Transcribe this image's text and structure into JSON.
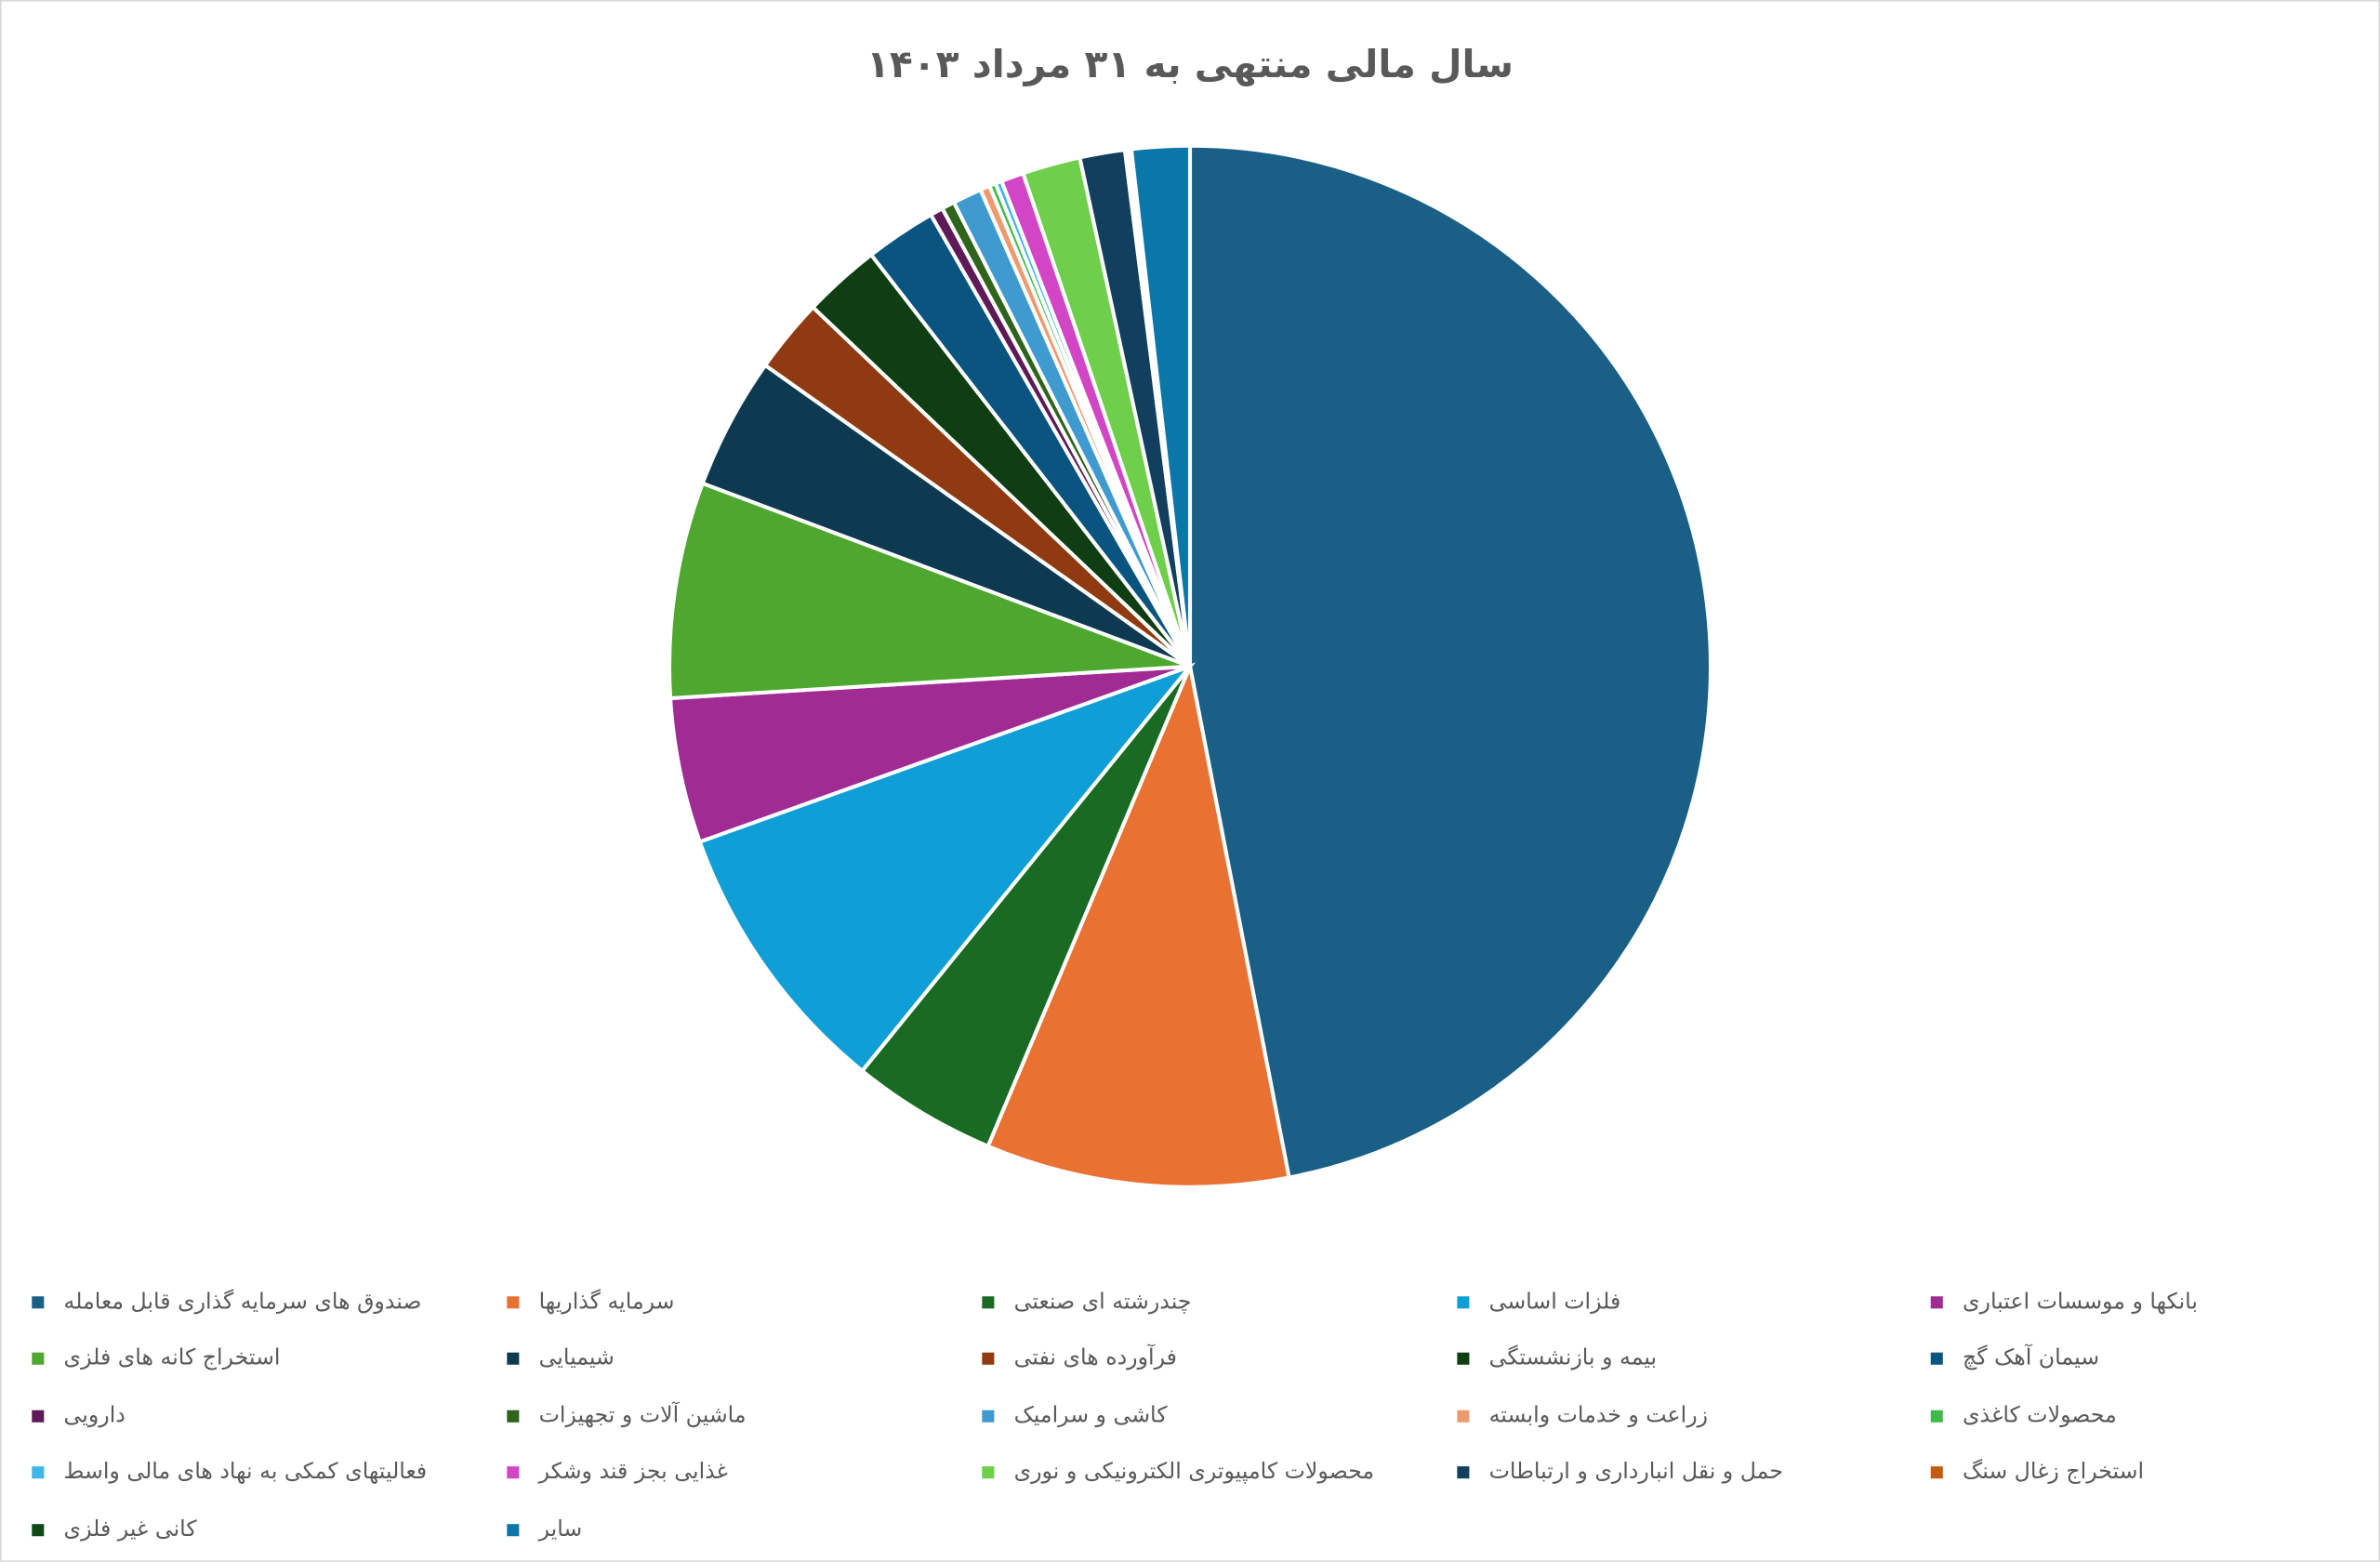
{
  "chart_data": {
    "type": "pie",
    "title": "سال مالی منتهی به ۳۱ مرداد ۱۴۰۳",
    "categories": [
      "صندوق های سرمایه گذاری قابل معامله",
      "سرمایه گذاریها",
      "چندرشته ای صنعتی",
      "فلزات اساسی",
      "بانکها و موسسات اعتباری",
      "استخراج کانه های فلزی",
      "شیمیایی",
      "فرآورده های نفتی",
      "بیمه و بازنشستگی",
      "سیمان آهک گچ",
      "دارویی",
      "ماشین آلات و تجهیزات",
      "کاشی و سرامیک",
      "زراعت و خدمات وابسته",
      "محصولات کاغذی",
      "فعالیتهای کمکی به نهاد های مالی واسط",
      "غذایی بجز قند وشکر",
      "محصولات کامپیوتری الکترونیکی و نوری",
      "حمل و نقل انبارداری و ارتباطات",
      "استخراج زغال سنگ",
      "کانی غیر فلزی",
      "سایر"
    ],
    "values": [
      47,
      9.4,
      4.5,
      8.7,
      4.5,
      6.7,
      4.1,
      2.3,
      2.4,
      2.2,
      0.4,
      0.4,
      0.9,
      0.3,
      0.2,
      0.2,
      0.7,
      1.8,
      1.4,
      0.1,
      0.1,
      1.8
    ],
    "colors": [
      "#1a5f86",
      "#e97132",
      "#196b24",
      "#0f9ed5",
      "#a02b93",
      "#4ea72e",
      "#0e3a51",
      "#8f3a10",
      "#0f3e13",
      "#09557f",
      "#5e1a56",
      "#2e641b",
      "#3f9ad0",
      "#ee9a6f",
      "#3fb94d",
      "#42b6e8",
      "#d246c5",
      "#6ecf4a",
      "#123f5e",
      "#c55a12",
      "#0e4a18",
      "#0b77a8"
    ],
    "legend": "bottom"
  }
}
